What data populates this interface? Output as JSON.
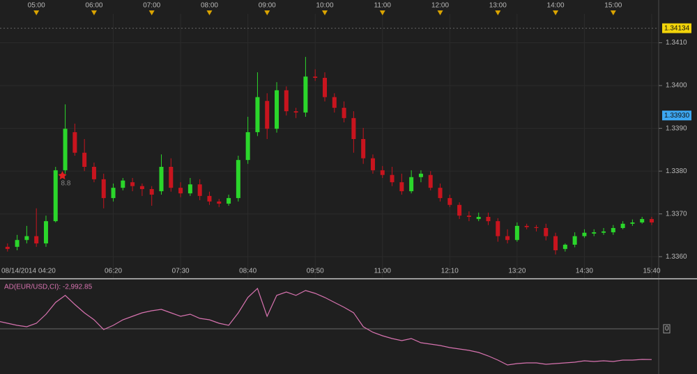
{
  "chart_data": [
    {
      "type": "candlestick",
      "categories": [
        "08/14/2014 04:20",
        null,
        null,
        null,
        null,
        null,
        null,
        null,
        null,
        null,
        null,
        null,
        "06:20",
        null,
        null,
        null,
        null,
        null,
        null,
        "07:30",
        null,
        null,
        null,
        null,
        null,
        null,
        "08:40",
        null,
        null,
        null,
        null,
        null,
        null,
        "09:50",
        null,
        null,
        null,
        null,
        null,
        null,
        "11:00",
        null,
        null,
        null,
        null,
        null,
        null,
        "12:10",
        null,
        null,
        null,
        null,
        null,
        null,
        "13:20",
        null,
        null,
        null,
        null,
        null,
        null,
        "14:30",
        null,
        null,
        null,
        null,
        null,
        null,
        "15:40"
      ],
      "top_axis_labels": [
        "05:00",
        "06:00",
        "07:00",
        "08:00",
        "09:00",
        "10:00",
        "11:00",
        "12:00",
        "13:00",
        "14:00",
        "15:00"
      ],
      "open": [
        1.33615,
        1.33623,
        1.33623,
        1.33639,
        1.33648,
        1.33631,
        1.33683,
        1.33802,
        1.33891,
        1.33843,
        1.3381,
        1.33781,
        1.33737,
        1.33761,
        1.33774,
        1.33765,
        1.33758,
        1.33753,
        1.3381,
        1.33761,
        1.33748,
        1.33769,
        1.33742,
        1.33729,
        1.33724,
        1.33737,
        1.33826,
        1.33891,
        1.33964,
        1.33899,
        1.33989,
        1.3394,
        1.33937,
        1.34021,
        1.34018,
        1.33973,
        1.33948,
        1.33924,
        1.33875,
        1.3383,
        1.33802,
        1.33791,
        1.33774,
        1.33753,
        1.33786,
        1.33791,
        1.33761,
        1.33737,
        1.33721,
        1.33696,
        1.33688,
        1.33693,
        1.33683,
        1.33648,
        1.33639,
        1.33672,
        1.33669,
        1.33667,
        1.33648,
        1.33618,
        1.33628,
        1.33648,
        1.33654,
        1.33656,
        1.33657,
        1.33667,
        1.33677,
        1.3368,
        1.33688
      ],
      "high": [
        1.33631,
        1.33631,
        1.33651,
        1.33672,
        1.33713,
        1.33696,
        1.3381,
        1.33956,
        1.33911,
        1.33875,
        1.3382,
        1.33794,
        1.33771,
        1.33784,
        1.33784,
        1.33771,
        1.33765,
        1.33839,
        1.3383,
        1.33774,
        1.33784,
        1.33781,
        1.33752,
        1.33735,
        1.33745,
        1.33836,
        1.33927,
        1.34031,
        1.33982,
        1.34008,
        1.33998,
        1.33948,
        1.34067,
        1.34038,
        1.34031,
        1.33982,
        1.33963,
        1.3394,
        1.33901,
        1.33839,
        1.33812,
        1.3381,
        1.33794,
        1.33802,
        1.33802,
        1.338,
        1.33771,
        1.33745,
        1.33727,
        1.33706,
        1.33703,
        1.33703,
        1.3369,
        1.33664,
        1.3368,
        1.33677,
        1.33674,
        1.33677,
        1.33656,
        1.33631,
        1.33657,
        1.33664,
        1.33664,
        1.33667,
        1.33674,
        1.33683,
        1.33687,
        1.33693,
        1.33693
      ],
      "low": [
        1.33609,
        1.33612,
        1.33615,
        1.33631,
        1.33623,
        1.33623,
        1.3368,
        1.33794,
        1.33836,
        1.338,
        1.33774,
        1.33713,
        1.33729,
        1.33755,
        1.33753,
        1.33742,
        1.33719,
        1.33745,
        1.33752,
        1.33739,
        1.33742,
        1.33732,
        1.33721,
        1.33716,
        1.33719,
        1.33729,
        1.33817,
        1.33882,
        1.33875,
        1.3389,
        1.3393,
        1.33924,
        1.33927,
        1.34011,
        1.33963,
        1.33937,
        1.33914,
        1.33843,
        1.33817,
        1.33794,
        1.33784,
        1.33765,
        1.33745,
        1.33748,
        1.33774,
        1.33755,
        1.33729,
        1.33716,
        1.33688,
        1.33683,
        1.33683,
        1.33674,
        1.33635,
        1.33631,
        1.33635,
        1.33664,
        1.33659,
        1.33638,
        1.33605,
        1.33612,
        1.33622,
        1.33644,
        1.33648,
        1.33651,
        1.33651,
        1.33664,
        1.33672,
        1.33677,
        1.33674
      ],
      "close": [
        1.33623,
        1.33618,
        1.33639,
        1.33648,
        1.33631,
        1.33683,
        1.33802,
        1.33899,
        1.33843,
        1.3381,
        1.33781,
        1.33737,
        1.33761,
        1.33778,
        1.33765,
        1.33758,
        1.33745,
        1.3381,
        1.33761,
        1.33748,
        1.33769,
        1.33742,
        1.33729,
        1.33724,
        1.33737,
        1.33826,
        1.33891,
        1.33973,
        1.33899,
        1.33989,
        1.3394,
        1.33937,
        1.34021,
        1.34018,
        1.33973,
        1.33948,
        1.33924,
        1.33875,
        1.3383,
        1.33802,
        1.33791,
        1.33774,
        1.33753,
        1.33786,
        1.33794,
        1.33761,
        1.33737,
        1.33721,
        1.33696,
        1.33693,
        1.33693,
        1.33683,
        1.33648,
        1.33639,
        1.33672,
        1.33669,
        1.33667,
        1.33648,
        1.33615,
        1.33628,
        1.33648,
        1.33656,
        1.33657,
        1.33659,
        1.33667,
        1.33677,
        1.3368,
        1.33688,
        1.3368
      ],
      "up_color": "#2bd62b",
      "down_color": "#c8141e",
      "ylim": [
        1.3355,
        1.342
      ],
      "yticks": [
        {
          "value": 1.336,
          "label": "1.3360"
        },
        {
          "value": 1.337,
          "label": "1.3370"
        },
        {
          "value": 1.338,
          "label": "1.3380"
        },
        {
          "value": 1.339,
          "label": "1.3390"
        },
        {
          "value": 1.34,
          "label": "1.3400"
        },
        {
          "value": 1.341,
          "label": "1.3410"
        }
      ],
      "grid": true,
      "price_markers": [
        {
          "value": 1.34134,
          "label": "1.34134",
          "color": "#f2d40a"
        },
        {
          "value": 1.3393,
          "label": "1.33930",
          "color": "#3ca6f0"
        }
      ],
      "annotation": "8.8"
    },
    {
      "type": "line",
      "title": "AD(EUR/USD,CI): -2,992.85",
      "color": "#d873b0",
      "values": [
        745,
        542,
        339,
        203,
        542,
        1422,
        2573,
        3250,
        2370,
        1557,
        880,
        -68,
        339,
        880,
        1219,
        1557,
        1760,
        1896,
        1557,
        1219,
        1422,
        1016,
        880,
        542,
        339,
        1557,
        3047,
        3927,
        1219,
        3250,
        3588,
        3250,
        3724,
        3453,
        3047,
        2573,
        2099,
        1557,
        203,
        -339,
        -677,
        -948,
        -1151,
        -948,
        -1354,
        -1489,
        -1625,
        -1828,
        -1963,
        -2099,
        -2302,
        -2640,
        -3047,
        -3520,
        -3385,
        -3317,
        -3317,
        -3453,
        -3385,
        -3317,
        -3250,
        -3114,
        -3182,
        -3114,
        -3182,
        -3047,
        -3047,
        -2979,
        -2992.85
      ],
      "ylim": [
        -4400,
        4600
      ],
      "yticks": [
        0
      ]
    }
  ]
}
